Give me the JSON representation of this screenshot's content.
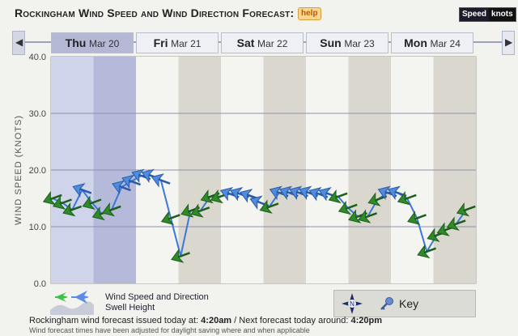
{
  "header": {
    "title": "Rockingham Wind Speed and Wind Direction Forecast:",
    "help_label": "help",
    "unit_label": "Speed",
    "unit_value": "knots"
  },
  "nav": {
    "prev_icon": "chevron-left-icon",
    "next_icon": "chevron-right-icon",
    "days": [
      {
        "day": "Thu",
        "date": "Mar 20",
        "active": true
      },
      {
        "day": "Fri",
        "date": "Mar 21",
        "active": false
      },
      {
        "day": "Sat",
        "date": "Mar 22",
        "active": false
      },
      {
        "day": "Sun",
        "date": "Mar 23",
        "active": false
      },
      {
        "day": "Mon",
        "date": "Mar 24",
        "active": false
      }
    ]
  },
  "chart_data": {
    "type": "line",
    "ylabel": "Wind Speed (knots)",
    "ylim": [
      0,
      40
    ],
    "yticks": [
      "0.0",
      "10.0",
      "20.0",
      "30.0",
      "40.0"
    ],
    "grid": true,
    "series": [
      {
        "name": "Wind Speed and Direction",
        "color": "#3a78d8",
        "values": [
          15.0,
          14.2,
          13.0,
          16.5,
          14.2,
          12.3,
          13.0,
          17.0,
          18.0,
          19.0,
          19.0,
          18.2,
          11.5,
          4.8,
          12.8,
          12.8,
          15.3,
          15.3,
          15.8,
          15.8,
          15.5,
          14.3,
          13.5,
          16.0,
          16.0,
          16.0,
          16.0,
          15.8,
          15.8,
          15.3,
          13.3,
          11.8,
          11.8,
          14.8,
          16.0,
          16.0,
          15.0,
          11.5,
          5.6,
          8.5,
          9.5,
          10.5,
          13.0
        ],
        "arrow_colors": [
          "green",
          "green",
          "green",
          "blue",
          "green",
          "green",
          "green",
          "blue",
          "blue",
          "blue",
          "blue",
          "blue",
          "green",
          "green",
          "green",
          "green",
          "green",
          "green",
          "blue",
          "blue",
          "blue",
          "blue",
          "green",
          "blue",
          "blue",
          "blue",
          "blue",
          "blue",
          "blue",
          "green",
          "green",
          "green",
          "green",
          "green",
          "blue",
          "blue",
          "green",
          "green",
          "green",
          "green",
          "green",
          "green",
          "green"
        ]
      }
    ],
    "legend": {
      "wind_label": "Wind Speed and Direction",
      "swell_label": "Swell Height"
    }
  },
  "footer": {
    "key_label": "Key",
    "compass_icon": "compass-icon",
    "key_icon": "key-icon",
    "issued_prefix": "Rockingham wind forecast issued today at: ",
    "issued_time": "4:20am",
    "next_prefix": " / Next forecast today around: ",
    "next_time": "4:20pm",
    "dst_note": "Wind forecast times have been adjusted for daylight saving where and when applicable"
  }
}
